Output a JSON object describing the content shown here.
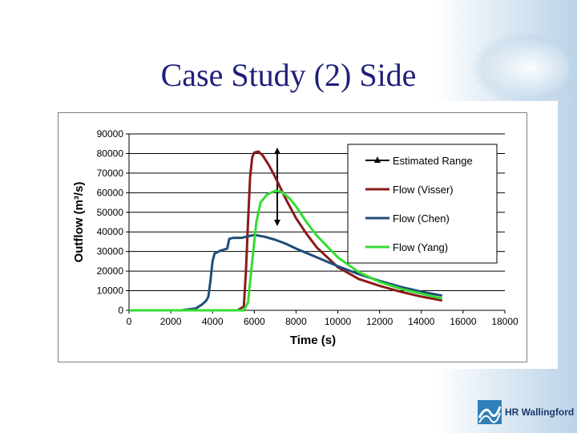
{
  "slide": {
    "title": "Case Study (2) Side",
    "logo_text": "HR Wallingford"
  },
  "colors": {
    "title": "#1f1f7a",
    "estimated_range": "#000000",
    "visser": "#8b1a1a",
    "chen": "#1f4e79",
    "yang": "#33dd33",
    "gridline": "#000000"
  },
  "chart_data": {
    "type": "line",
    "title": "",
    "xlabel": "Time (s)",
    "ylabel": "Outflow (m³/s)",
    "xlim": [
      0,
      18000
    ],
    "ylim": [
      0,
      90000
    ],
    "xticks": [
      0,
      2000,
      4000,
      6000,
      8000,
      10000,
      12000,
      14000,
      16000,
      18000
    ],
    "yticks": [
      0,
      10000,
      20000,
      30000,
      40000,
      50000,
      60000,
      70000,
      80000,
      90000
    ],
    "grid": "horizontal",
    "legend_position": "right",
    "series": [
      {
        "name": "Estimated Range",
        "color": "#000000",
        "marker": "triangle",
        "points": [
          [
            7100,
            45000
          ],
          [
            7100,
            81000
          ]
        ]
      },
      {
        "name": "Flow (Visser)",
        "color": "#8b1a1a",
        "points": [
          [
            0,
            0
          ],
          [
            5200,
            0
          ],
          [
            5500,
            2000
          ],
          [
            5600,
            20000
          ],
          [
            5700,
            45000
          ],
          [
            5800,
            68000
          ],
          [
            5900,
            78000
          ],
          [
            6000,
            80500
          ],
          [
            6200,
            81000
          ],
          [
            6400,
            79000
          ],
          [
            6700,
            74000
          ],
          [
            7000,
            68000
          ],
          [
            7500,
            57000
          ],
          [
            8000,
            47000
          ],
          [
            8500,
            39000
          ],
          [
            9000,
            32000
          ],
          [
            10000,
            22000
          ],
          [
            11000,
            16000
          ],
          [
            12000,
            12500
          ],
          [
            13000,
            9500
          ],
          [
            14000,
            7000
          ],
          [
            15000,
            5000
          ]
        ]
      },
      {
        "name": "Flow (Chen)",
        "color": "#1f4e79",
        "points": [
          [
            0,
            0
          ],
          [
            2500,
            0
          ],
          [
            3200,
            1000
          ],
          [
            3500,
            3000
          ],
          [
            3700,
            5000
          ],
          [
            3800,
            7000
          ],
          [
            3900,
            15000
          ],
          [
            4000,
            25000
          ],
          [
            4100,
            29000
          ],
          [
            4400,
            30500
          ],
          [
            4700,
            31500
          ],
          [
            4800,
            36500
          ],
          [
            5000,
            37000
          ],
          [
            5400,
            37000
          ],
          [
            5600,
            37500
          ],
          [
            6000,
            38500
          ],
          [
            6500,
            37500
          ],
          [
            7000,
            36000
          ],
          [
            7500,
            34000
          ],
          [
            8000,
            31500
          ],
          [
            9000,
            27000
          ],
          [
            10000,
            22500
          ],
          [
            11000,
            18500
          ],
          [
            12000,
            15000
          ],
          [
            13000,
            12000
          ],
          [
            14000,
            9500
          ],
          [
            15000,
            7500
          ]
        ]
      },
      {
        "name": "Flow (Yang)",
        "color": "#33dd33",
        "points": [
          [
            0,
            0
          ],
          [
            5500,
            0
          ],
          [
            5700,
            4000
          ],
          [
            5900,
            25000
          ],
          [
            6100,
            45000
          ],
          [
            6300,
            55000
          ],
          [
            6600,
            59000
          ],
          [
            7000,
            61000
          ],
          [
            7300,
            60500
          ],
          [
            7700,
            57000
          ],
          [
            8000,
            53000
          ],
          [
            8500,
            45000
          ],
          [
            9000,
            38000
          ],
          [
            10000,
            27000
          ],
          [
            11000,
            19500
          ],
          [
            12000,
            14500
          ],
          [
            13000,
            11000
          ],
          [
            14000,
            8500
          ],
          [
            15000,
            6000
          ]
        ]
      }
    ]
  }
}
